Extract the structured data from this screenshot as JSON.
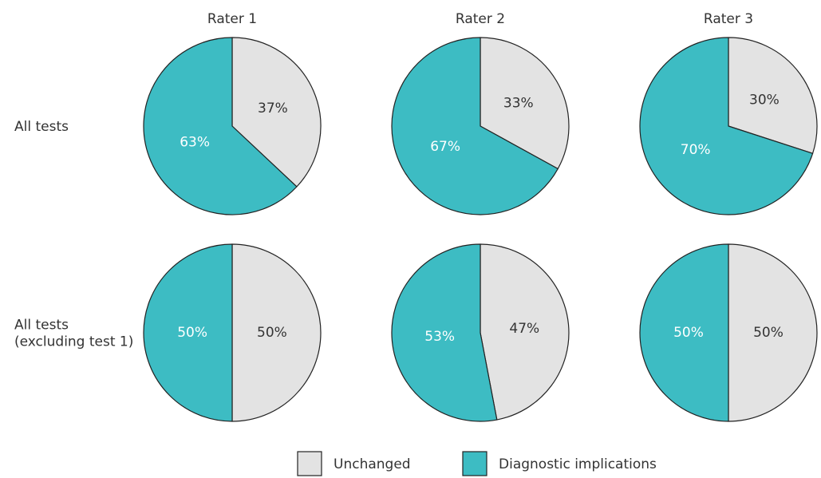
{
  "chart_data": {
    "type": "pie",
    "columns": [
      "Rater 1",
      "Rater 2",
      "Rater 3"
    ],
    "rows": [
      "All tests",
      "All tests\n(excluding test 1)"
    ],
    "legend": {
      "placement": "bottom-center",
      "entries": [
        {
          "name": "Unchanged",
          "color": "#e3e3e3"
        },
        {
          "name": "Diagnostic implications",
          "color": "#3dbcc3"
        }
      ]
    },
    "pies": [
      {
        "row": 0,
        "col": 0,
        "slices": [
          {
            "category": "Unchanged",
            "value": 37,
            "label": "37%"
          },
          {
            "category": "Diagnostic implications",
            "value": 63,
            "label": "63%"
          }
        ]
      },
      {
        "row": 0,
        "col": 1,
        "slices": [
          {
            "category": "Unchanged",
            "value": 33,
            "label": "33%"
          },
          {
            "category": "Diagnostic implications",
            "value": 67,
            "label": "67%"
          }
        ]
      },
      {
        "row": 0,
        "col": 2,
        "slices": [
          {
            "category": "Unchanged",
            "value": 30,
            "label": "30%"
          },
          {
            "category": "Diagnostic implications",
            "value": 70,
            "label": "70%"
          }
        ]
      },
      {
        "row": 1,
        "col": 0,
        "slices": [
          {
            "category": "Unchanged",
            "value": 50,
            "label": "50%"
          },
          {
            "category": "Diagnostic implications",
            "value": 50,
            "label": "50%"
          }
        ]
      },
      {
        "row": 1,
        "col": 1,
        "slices": [
          {
            "category": "Unchanged",
            "value": 47,
            "label": "47%"
          },
          {
            "category": "Diagnostic implications",
            "value": 53,
            "label": "53%"
          }
        ]
      },
      {
        "row": 1,
        "col": 2,
        "slices": [
          {
            "category": "Unchanged",
            "value": 50,
            "label": "50%"
          },
          {
            "category": "Diagnostic implications",
            "value": 50,
            "label": "50%"
          }
        ]
      }
    ]
  }
}
